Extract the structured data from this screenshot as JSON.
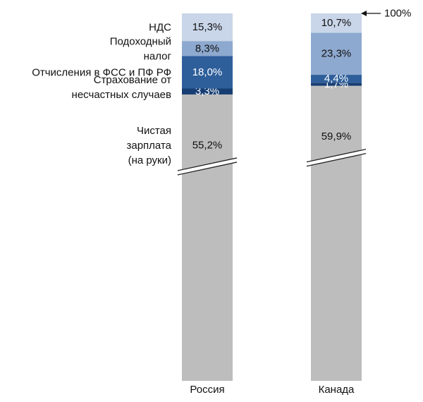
{
  "chart_data": {
    "type": "bar",
    "stacked": true,
    "normalized_to_percent": true,
    "categories": [
      "Россия",
      "Канада"
    ],
    "series": [
      {
        "name": "Чистая зарплата (на руки)",
        "values": [
          55.2,
          59.9
        ],
        "labels": [
          "55,2%",
          "59,9%"
        ],
        "color": "#bdbdbd",
        "label_color": "#111111"
      },
      {
        "name": "Страхование от несчастных случаев",
        "values": [
          3.3,
          1.7
        ],
        "labels": [
          "3,3%",
          "1,7%"
        ],
        "color": "#173e73",
        "label_color": "#ffffff"
      },
      {
        "name": "Отчисления в ФСС и ПФ РФ",
        "values": [
          18.0,
          4.4
        ],
        "labels": [
          "18,0%",
          "4,4%"
        ],
        "color": "#2f5f9b",
        "label_color": "#ffffff"
      },
      {
        "name": "Подоходный налог",
        "values": [
          8.3,
          23.3
        ],
        "labels": [
          "8,3%",
          "23,3%"
        ],
        "color": "#8ea9cf",
        "label_color": "#111111"
      },
      {
        "name": "НДС",
        "values": [
          15.3,
          10.7
        ],
        "labels": [
          "15,3%",
          "10,7%"
        ],
        "color": "#c9d5e8",
        "label_color": "#111111"
      }
    ],
    "row_labels": [
      {
        "series": 4,
        "lines": [
          "НДС"
        ]
      },
      {
        "series": 3,
        "lines": [
          "Подоходный",
          "налог"
        ]
      },
      {
        "series": 2,
        "lines": [
          "Отчисления в ФСС и ПФ РФ"
        ]
      },
      {
        "series": 1,
        "lines": [
          "Страхование от",
          "несчастных случаев"
        ]
      },
      {
        "series": 0,
        "lines": [
          "Чистая",
          "зарплата",
          "(на руки)"
        ]
      }
    ],
    "top_annotation": "100%",
    "axis_break": true,
    "legend": "none",
    "grid": false
  }
}
